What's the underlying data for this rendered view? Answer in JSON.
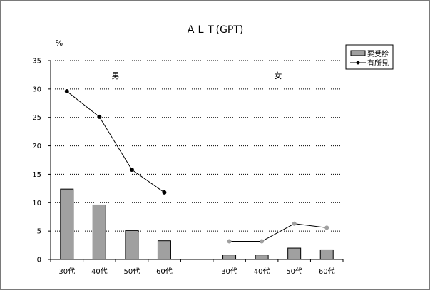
{
  "chart_data": {
    "type": "bar+line",
    "title": "ＡＬＴ(GPT)",
    "y_unit": "%",
    "ylim": [
      0,
      35
    ],
    "y_ticks": [
      "0",
      "5",
      "10",
      "15",
      "20",
      "25",
      "30",
      "35"
    ],
    "grid": "dotted horizontal",
    "groups": [
      {
        "label": "男",
        "categories": [
          "30代",
          "40代",
          "50代",
          "60代"
        ],
        "bars": [
          12.4,
          9.6,
          5.1,
          3.3
        ],
        "line": [
          29.6,
          25.1,
          15.8,
          11.8
        ],
        "line_color": "#000000",
        "marker_color": "#000000"
      },
      {
        "label": "女",
        "categories": [
          "30代",
          "40代",
          "50代",
          "60代"
        ],
        "bars": [
          0.8,
          0.8,
          2.0,
          1.7
        ],
        "line": [
          3.2,
          3.2,
          6.3,
          5.6
        ],
        "line_color": "#000000",
        "marker_color": "#a0a0a0"
      }
    ],
    "legend": {
      "position": "top-right",
      "items": [
        {
          "name": "要受診",
          "type": "bar",
          "color": "#a0a0a0"
        },
        {
          "name": "有所見",
          "type": "line",
          "color": "#000000"
        }
      ]
    },
    "colors": {
      "bar_fill": "#a0a0a0",
      "bar_stroke": "#000000",
      "grid": "#000000"
    }
  }
}
